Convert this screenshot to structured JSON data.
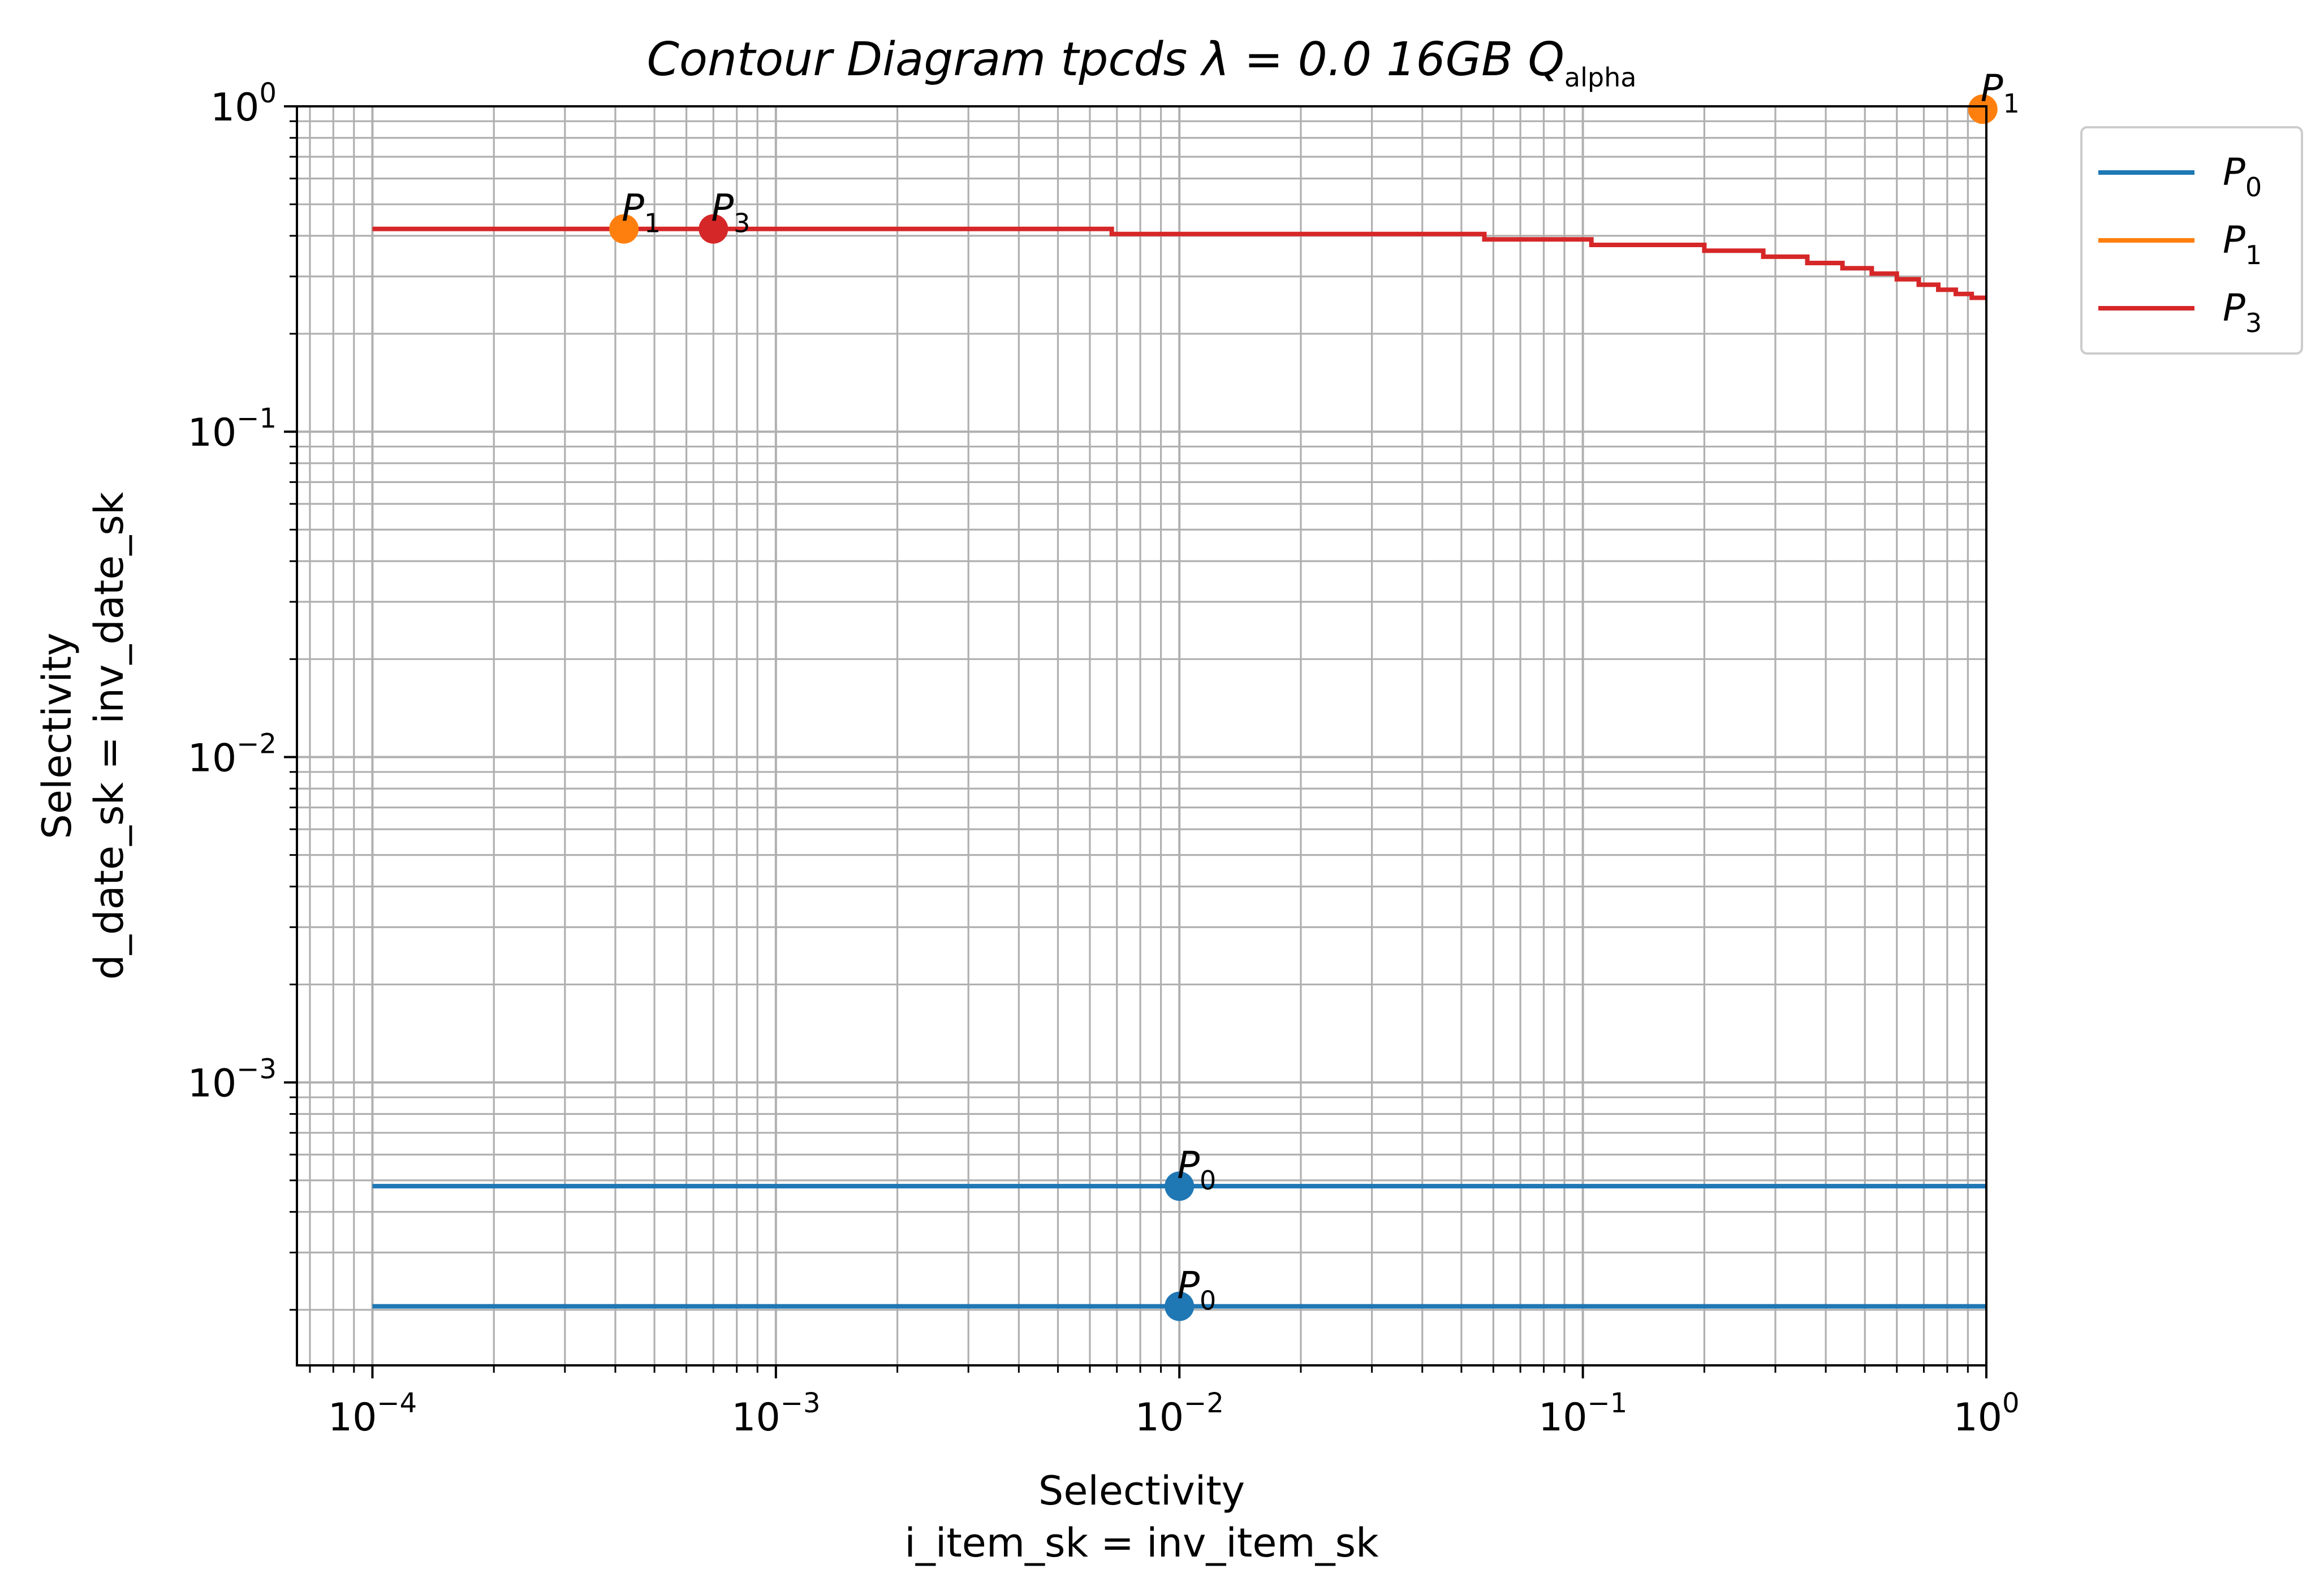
{
  "chart_data": {
    "type": "line",
    "title_parts": {
      "main": "Contour Diagram tpcds ",
      "lambda": "λ = 0.0",
      "size": " 16GB ",
      "q": "Q",
      "q_sub": "alpha"
    },
    "xlabel": [
      "Selectivity",
      "i_item_sk = inv_item_sk"
    ],
    "ylabel": [
      "Selectivity",
      "d_date_sk = inv_date_sk"
    ],
    "x_scale": "log",
    "y_scale": "log",
    "xlim": [
      6.5e-05,
      1.0
    ],
    "ylim": [
      0.000135,
      1.0
    ],
    "x_ticks": [
      {
        "value": 0.0001,
        "base": "10",
        "exp": "−4"
      },
      {
        "value": 0.001,
        "base": "10",
        "exp": "−3"
      },
      {
        "value": 0.01,
        "base": "10",
        "exp": "−2"
      },
      {
        "value": 0.1,
        "base": "10",
        "exp": "−1"
      },
      {
        "value": 1.0,
        "base": "10",
        "exp": "0"
      }
    ],
    "y_ticks": [
      {
        "value": 0.001,
        "base": "10",
        "exp": "−3"
      },
      {
        "value": 0.01,
        "base": "10",
        "exp": "−2"
      },
      {
        "value": 0.1,
        "base": "10",
        "exp": "−1"
      },
      {
        "value": 1.0,
        "base": "10",
        "exp": "0"
      }
    ],
    "grid": true,
    "legend_position": "outside-top-right",
    "series": [
      {
        "name": "P",
        "name_sub": "0",
        "color": "#1f77b4",
        "lines": [
          {
            "x": [
              0.0001,
              1.0
            ],
            "y": [
              0.00048,
              0.00048
            ]
          },
          {
            "x": [
              0.0001,
              1.0
            ],
            "y": [
              0.000205,
              0.000205
            ]
          }
        ],
        "points": [
          {
            "x": 0.01,
            "y": 0.00048
          },
          {
            "x": 0.01,
            "y": 0.000205
          }
        ]
      },
      {
        "name": "P",
        "name_sub": "1",
        "color": "#ff7f0e",
        "lines": [],
        "points": [
          {
            "x": 0.00042,
            "y": 0.42
          },
          {
            "x": 0.98,
            "y": 0.98
          }
        ]
      },
      {
        "name": "P",
        "name_sub": "3",
        "color": "#d62728",
        "lines": [
          {
            "x": [
              0.0001,
              0.0068,
              0.0068,
              0.057,
              0.057,
              0.105,
              0.105,
              0.2,
              0.2,
              0.28,
              0.28,
              0.36,
              0.36,
              0.44,
              0.44,
              0.52,
              0.52,
              0.6,
              0.6,
              0.68,
              0.68,
              0.76,
              0.76,
              0.84,
              0.84,
              0.92,
              0.92,
              1.0
            ],
            "y": [
              0.42,
              0.42,
              0.405,
              0.405,
              0.39,
              0.39,
              0.375,
              0.375,
              0.36,
              0.36,
              0.345,
              0.345,
              0.33,
              0.33,
              0.318,
              0.318,
              0.306,
              0.306,
              0.294,
              0.294,
              0.283,
              0.283,
              0.273,
              0.273,
              0.265,
              0.265,
              0.258,
              0.258
            ]
          }
        ],
        "points": [
          {
            "x": 0.0007,
            "y": 0.42
          }
        ]
      }
    ]
  }
}
